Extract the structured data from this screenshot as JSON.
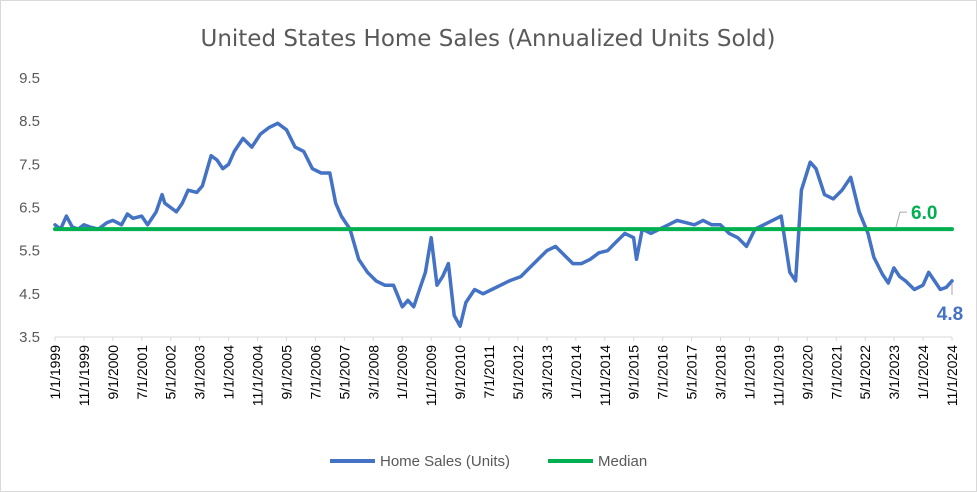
{
  "chart_data": {
    "type": "line",
    "title": "United States Home Sales (Annualized Units Sold)",
    "xlabel": "",
    "ylabel": "",
    "ylim": [
      3.5,
      9.5
    ],
    "yticks": [
      "3.5",
      "4.5",
      "5.5",
      "6.5",
      "7.5",
      "8.5",
      "9.5"
    ],
    "grid": false,
    "legend_position": "bottom",
    "x_range": [
      "1999-01-01",
      "2024-11-01"
    ],
    "x_tick_labels": [
      "1/1/1999",
      "11/1/1999",
      "9/1/2000",
      "7/1/2001",
      "5/1/2002",
      "3/1/2003",
      "1/1/2004",
      "11/1/2004",
      "9/1/2005",
      "7/1/2006",
      "5/1/2007",
      "3/1/2008",
      "1/1/2009",
      "11/1/2009",
      "9/1/2010",
      "7/1/2011",
      "5/1/2012",
      "3/1/2013",
      "1/1/2014",
      "11/1/2014",
      "9/1/2015",
      "7/1/2016",
      "5/1/2017",
      "3/1/2018",
      "1/1/2019",
      "11/1/2019",
      "9/1/2020",
      "7/1/2021",
      "5/1/2022",
      "3/1/2023",
      "1/1/2024",
      "11/1/2024"
    ],
    "series": [
      {
        "name": "Home Sales (Units)",
        "color": "#4472c4",
        "points": [
          [
            "1999-01-01",
            6.1
          ],
          [
            "1999-03-01",
            6.0
          ],
          [
            "1999-05-01",
            6.3
          ],
          [
            "1999-07-01",
            6.05
          ],
          [
            "1999-09-01",
            6.0
          ],
          [
            "1999-11-01",
            6.1
          ],
          [
            "2000-01-01",
            6.05
          ],
          [
            "2000-04-01",
            6.0
          ],
          [
            "2000-07-01",
            6.15
          ],
          [
            "2000-09-01",
            6.2
          ],
          [
            "2000-12-01",
            6.1
          ],
          [
            "2001-02-01",
            6.35
          ],
          [
            "2001-04-01",
            6.25
          ],
          [
            "2001-07-01",
            6.3
          ],
          [
            "2001-09-01",
            6.1
          ],
          [
            "2001-12-01",
            6.4
          ],
          [
            "2002-02-01",
            6.8
          ],
          [
            "2002-03-01",
            6.6
          ],
          [
            "2002-05-01",
            6.5
          ],
          [
            "2002-07-01",
            6.4
          ],
          [
            "2002-09-01",
            6.6
          ],
          [
            "2002-11-01",
            6.9
          ],
          [
            "2003-02-01",
            6.85
          ],
          [
            "2003-04-01",
            7.0
          ],
          [
            "2003-07-01",
            7.7
          ],
          [
            "2003-09-01",
            7.6
          ],
          [
            "2003-11-01",
            7.4
          ],
          [
            "2004-01-01",
            7.5
          ],
          [
            "2004-03-01",
            7.8
          ],
          [
            "2004-06-01",
            8.1
          ],
          [
            "2004-09-01",
            7.9
          ],
          [
            "2004-12-01",
            8.2
          ],
          [
            "2005-03-01",
            8.35
          ],
          [
            "2005-06-01",
            8.45
          ],
          [
            "2005-09-01",
            8.3
          ],
          [
            "2005-12-01",
            7.9
          ],
          [
            "2006-03-01",
            7.8
          ],
          [
            "2006-06-01",
            7.4
          ],
          [
            "2006-09-01",
            7.3
          ],
          [
            "2006-12-01",
            7.3
          ],
          [
            "2007-02-01",
            6.6
          ],
          [
            "2007-04-01",
            6.3
          ],
          [
            "2007-07-01",
            6.0
          ],
          [
            "2007-10-01",
            5.3
          ],
          [
            "2008-01-01",
            5.0
          ],
          [
            "2008-04-01",
            4.8
          ],
          [
            "2008-07-01",
            4.7
          ],
          [
            "2008-10-01",
            4.7
          ],
          [
            "2009-01-01",
            4.2
          ],
          [
            "2009-03-01",
            4.35
          ],
          [
            "2009-05-01",
            4.2
          ],
          [
            "2009-07-01",
            4.6
          ],
          [
            "2009-09-01",
            5.0
          ],
          [
            "2009-11-01",
            5.8
          ],
          [
            "2010-01-01",
            4.7
          ],
          [
            "2010-03-01",
            4.9
          ],
          [
            "2010-05-01",
            5.2
          ],
          [
            "2010-07-01",
            4.0
          ],
          [
            "2010-09-01",
            3.75
          ],
          [
            "2010-11-01",
            4.3
          ],
          [
            "2011-02-01",
            4.6
          ],
          [
            "2011-05-01",
            4.5
          ],
          [
            "2011-08-01",
            4.6
          ],
          [
            "2011-11-01",
            4.7
          ],
          [
            "2012-02-01",
            4.8
          ],
          [
            "2012-06-01",
            4.9
          ],
          [
            "2012-09-01",
            5.1
          ],
          [
            "2012-12-01",
            5.3
          ],
          [
            "2013-03-01",
            5.5
          ],
          [
            "2013-06-01",
            5.6
          ],
          [
            "2013-09-01",
            5.4
          ],
          [
            "2013-12-01",
            5.2
          ],
          [
            "2014-03-01",
            5.2
          ],
          [
            "2014-06-01",
            5.3
          ],
          [
            "2014-09-01",
            5.45
          ],
          [
            "2014-12-01",
            5.5
          ],
          [
            "2015-03-01",
            5.7
          ],
          [
            "2015-06-01",
            5.9
          ],
          [
            "2015-09-01",
            5.8
          ],
          [
            "2015-10-01",
            5.3
          ],
          [
            "2015-12-01",
            6.0
          ],
          [
            "2016-03-01",
            5.9
          ],
          [
            "2016-06-01",
            6.0
          ],
          [
            "2016-09-01",
            6.1
          ],
          [
            "2016-12-01",
            6.2
          ],
          [
            "2017-03-01",
            6.15
          ],
          [
            "2017-06-01",
            6.1
          ],
          [
            "2017-09-01",
            6.2
          ],
          [
            "2017-12-01",
            6.1
          ],
          [
            "2018-03-01",
            6.1
          ],
          [
            "2018-06-01",
            5.9
          ],
          [
            "2018-09-01",
            5.8
          ],
          [
            "2018-12-01",
            5.6
          ],
          [
            "2019-03-01",
            6.0
          ],
          [
            "2019-06-01",
            6.1
          ],
          [
            "2019-09-01",
            6.2
          ],
          [
            "2019-12-01",
            6.3
          ],
          [
            "2020-03-01",
            5.0
          ],
          [
            "2020-05-01",
            4.8
          ],
          [
            "2020-07-01",
            6.9
          ],
          [
            "2020-10-01",
            7.55
          ],
          [
            "2020-12-01",
            7.4
          ],
          [
            "2021-03-01",
            6.8
          ],
          [
            "2021-06-01",
            6.7
          ],
          [
            "2021-09-01",
            6.9
          ],
          [
            "2021-12-01",
            7.2
          ],
          [
            "2022-03-01",
            6.4
          ],
          [
            "2022-06-01",
            5.9
          ],
          [
            "2022-08-01",
            5.35
          ],
          [
            "2022-11-01",
            4.95
          ],
          [
            "2023-01-01",
            4.75
          ],
          [
            "2023-03-01",
            5.1
          ],
          [
            "2023-05-01",
            4.9
          ],
          [
            "2023-07-01",
            4.8
          ],
          [
            "2023-10-01",
            4.6
          ],
          [
            "2024-01-01",
            4.7
          ],
          [
            "2024-03-01",
            5.0
          ],
          [
            "2024-05-01",
            4.8
          ],
          [
            "2024-07-01",
            4.6
          ],
          [
            "2024-09-01",
            4.65
          ],
          [
            "2024-11-01",
            4.8
          ]
        ]
      },
      {
        "name": "Median",
        "color": "#00b050",
        "points": [
          [
            "1999-01-01",
            6.0
          ],
          [
            "2024-11-01",
            6.0
          ]
        ]
      }
    ],
    "annotations": [
      {
        "text": "6.0",
        "value": 6.0,
        "series": "Median",
        "color": "#00b050"
      },
      {
        "text": "4.8",
        "value": 4.8,
        "series": "Home Sales (Units)",
        "color": "#4472c4"
      }
    ]
  }
}
